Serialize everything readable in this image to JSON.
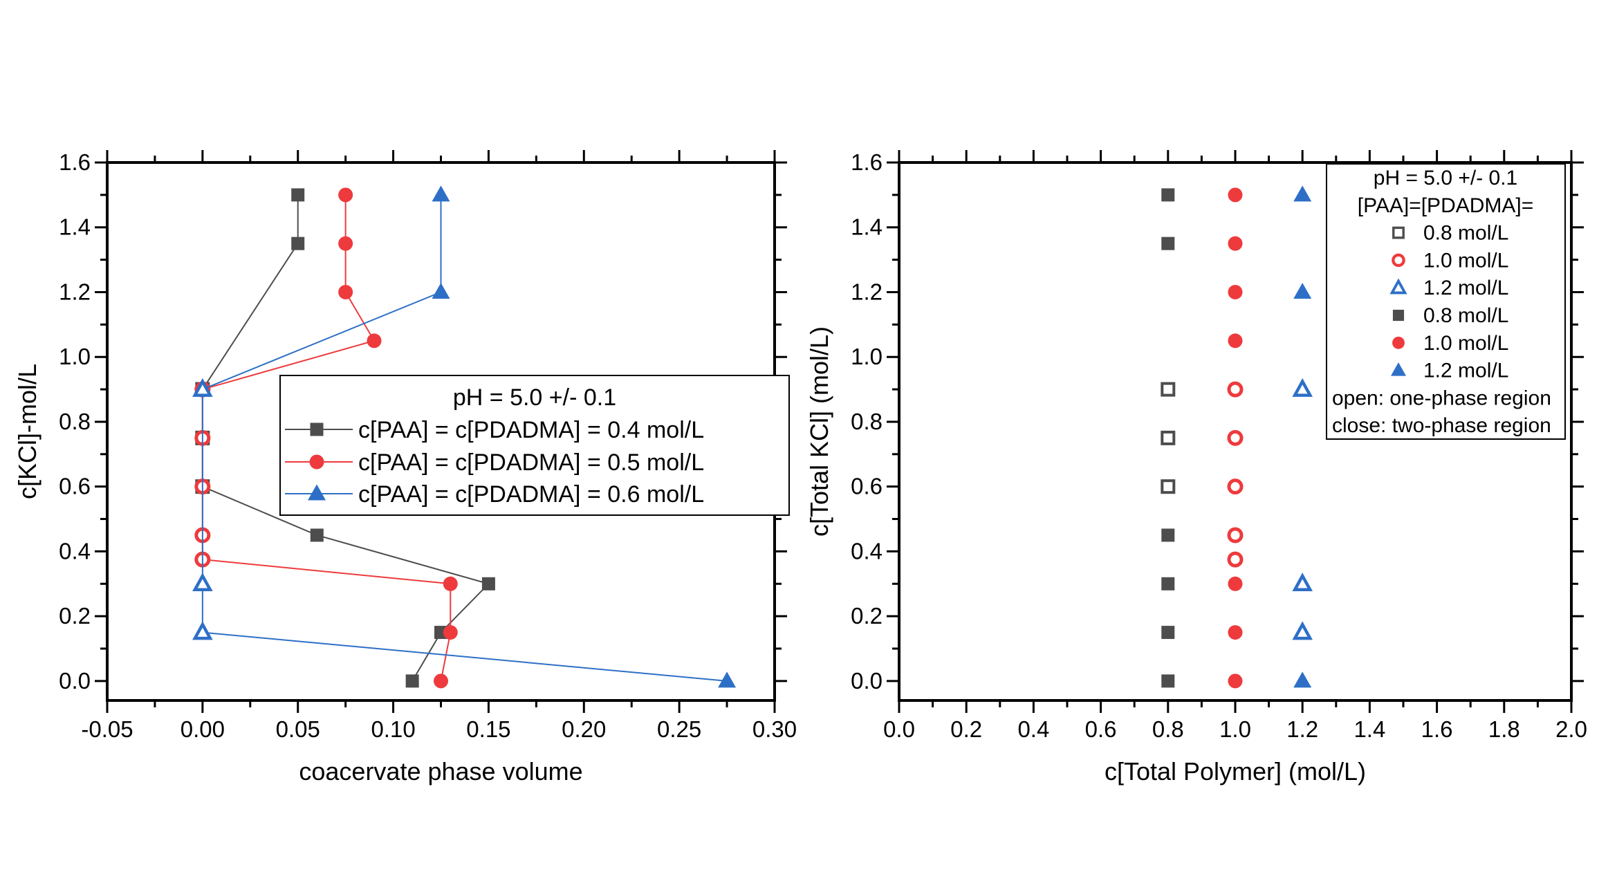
{
  "figure": {
    "background": "#ffffff",
    "colors": {
      "gray": "#4d4d4d",
      "red": "#ee3a3c",
      "blue": "#2d6fc7",
      "axis": "#000000",
      "open_fill": "#ffffff"
    }
  },
  "chart_data": [
    {
      "type": "line-scatter",
      "panel": "left",
      "xlabel": "coacervate phase volume",
      "ylabel": "c[KCl]-mol/L",
      "xlim": [
        -0.05,
        0.3
      ],
      "ylim": [
        -0.06,
        1.6
      ],
      "grid": false,
      "xticks": [
        -0.05,
        0.0,
        0.05,
        0.1,
        0.15,
        0.2,
        0.25,
        0.3
      ],
      "xtick_labels": [
        "-0.05",
        "0.00",
        "0.05",
        "0.10",
        "0.15",
        "0.20",
        "0.25",
        "0.30"
      ],
      "yticks": [
        0.0,
        0.2,
        0.4,
        0.6,
        0.8,
        1.0,
        1.2,
        1.4,
        1.6
      ],
      "ytick_labels": [
        "0.0",
        "0.2",
        "0.4",
        "0.6",
        "0.8",
        "1.0",
        "1.2",
        "1.4",
        "1.6"
      ],
      "legend": {
        "position": "inside-right",
        "title": "pH = 5.0 +/- 0.1",
        "entries": [
          {
            "marker": "square",
            "color_key": "gray",
            "open": false,
            "with_line": true,
            "label": "c[PAA] = c[PDADMA] = 0.4 mol/L"
          },
          {
            "marker": "circle",
            "color_key": "red",
            "open": false,
            "with_line": true,
            "label": "c[PAA] = c[PDADMA] = 0.5 mol/L"
          },
          {
            "marker": "triangle",
            "color_key": "blue",
            "open": false,
            "with_line": true,
            "label": "c[PAA] = c[PDADMA] = 0.6 mol/L"
          }
        ]
      },
      "series": [
        {
          "id": "paa-pdadma-0.4",
          "name": "c[PAA] = c[PDADMA] = 0.4 mol/L",
          "marker": "square",
          "color_key": "gray",
          "line": true,
          "points": [
            [
              0.05,
              1.5,
              1
            ],
            [
              0.05,
              1.35,
              1
            ],
            [
              0.0,
              0.9,
              0
            ],
            [
              0.0,
              0.75,
              0
            ],
            [
              0.0,
              0.6,
              0
            ],
            [
              0.06,
              0.45,
              1
            ],
            [
              0.15,
              0.3,
              1
            ],
            [
              0.125,
              0.15,
              1
            ],
            [
              0.11,
              0.0,
              1
            ]
          ]
        },
        {
          "id": "paa-pdadma-0.5",
          "name": "c[PAA] = c[PDADMA] = 0.5 mol/L",
          "marker": "circle",
          "color_key": "red",
          "line": true,
          "points": [
            [
              0.075,
              1.5,
              1
            ],
            [
              0.075,
              1.35,
              1
            ],
            [
              0.075,
              1.2,
              1
            ],
            [
              0.09,
              1.05,
              1
            ],
            [
              0.0,
              0.9,
              0
            ],
            [
              0.0,
              0.75,
              0
            ],
            [
              0.0,
              0.6,
              0
            ],
            [
              0.0,
              0.45,
              0
            ],
            [
              0.0,
              0.375,
              0
            ],
            [
              0.13,
              0.3,
              1
            ],
            [
              0.13,
              0.15,
              1
            ],
            [
              0.125,
              0.0,
              1
            ]
          ]
        },
        {
          "id": "paa-pdadma-0.6",
          "name": "c[PAA] = c[PDADMA] = 0.6 mol/L",
          "marker": "triangle",
          "color_key": "blue",
          "line": true,
          "points": [
            [
              0.125,
              1.5,
              1
            ],
            [
              0.125,
              1.2,
              1
            ],
            [
              0.0,
              0.9,
              0
            ],
            [
              0.0,
              0.3,
              0
            ],
            [
              0.0,
              0.15,
              0
            ],
            [
              0.275,
              0.0,
              1
            ]
          ]
        }
      ]
    },
    {
      "type": "scatter",
      "panel": "right",
      "xlabel": "c[Total Polymer] (mol/L)",
      "ylabel": "c[Total KCl] (mol/L)",
      "xlim": [
        0.0,
        2.0
      ],
      "ylim": [
        -0.06,
        1.6
      ],
      "grid": false,
      "xticks": [
        0.0,
        0.2,
        0.4,
        0.6,
        0.8,
        1.0,
        1.2,
        1.4,
        1.6,
        1.8,
        2.0
      ],
      "xtick_labels": [
        "0.0",
        "0.2",
        "0.4",
        "0.6",
        "0.8",
        "1.0",
        "1.2",
        "1.4",
        "1.6",
        "1.8",
        "2.0"
      ],
      "yticks": [
        0.0,
        0.2,
        0.4,
        0.6,
        0.8,
        1.0,
        1.2,
        1.4,
        1.6
      ],
      "ytick_labels": [
        "0.0",
        "0.2",
        "0.4",
        "0.6",
        "0.8",
        "1.0",
        "1.2",
        "1.4",
        "1.6"
      ],
      "legend": {
        "position": "top-right",
        "header_lines": [
          "pH = 5.0 +/- 0.1",
          "[PAA]=[PDADMA]="
        ],
        "entries": [
          {
            "marker": "square",
            "color_key": "gray",
            "open": true,
            "label": "0.8 mol/L"
          },
          {
            "marker": "circle",
            "color_key": "red",
            "open": true,
            "label": "1.0 mol/L"
          },
          {
            "marker": "triangle",
            "color_key": "blue",
            "open": true,
            "label": "1.2 mol/L"
          },
          {
            "marker": "square",
            "color_key": "gray",
            "open": false,
            "label": "0.8 mol/L"
          },
          {
            "marker": "circle",
            "color_key": "red",
            "open": false,
            "label": "1.0 mol/L"
          },
          {
            "marker": "triangle",
            "color_key": "blue",
            "open": false,
            "label": "1.2 mol/L"
          }
        ],
        "footer_lines": [
          "open: one-phase region",
          "close: two-phase region"
        ]
      },
      "series": [
        {
          "id": "total-polymer-0.8",
          "name": "0.8 mol/L",
          "marker": "square",
          "color_key": "gray",
          "line": false,
          "points": [
            [
              0.8,
              1.5,
              1
            ],
            [
              0.8,
              1.35,
              1
            ],
            [
              0.8,
              0.9,
              0
            ],
            [
              0.8,
              0.75,
              0
            ],
            [
              0.8,
              0.6,
              0
            ],
            [
              0.8,
              0.45,
              1
            ],
            [
              0.8,
              0.3,
              1
            ],
            [
              0.8,
              0.15,
              1
            ],
            [
              0.8,
              0.0,
              1
            ]
          ]
        },
        {
          "id": "total-polymer-1.0",
          "name": "1.0 mol/L",
          "marker": "circle",
          "color_key": "red",
          "line": false,
          "points": [
            [
              1.0,
              1.5,
              1
            ],
            [
              1.0,
              1.35,
              1
            ],
            [
              1.0,
              1.2,
              1
            ],
            [
              1.0,
              1.05,
              1
            ],
            [
              1.0,
              0.9,
              0
            ],
            [
              1.0,
              0.75,
              0
            ],
            [
              1.0,
              0.6,
              0
            ],
            [
              1.0,
              0.45,
              0
            ],
            [
              1.0,
              0.375,
              0
            ],
            [
              1.0,
              0.3,
              1
            ],
            [
              1.0,
              0.15,
              1
            ],
            [
              1.0,
              0.0,
              1
            ]
          ]
        },
        {
          "id": "total-polymer-1.2",
          "name": "1.2 mol/L",
          "marker": "triangle",
          "color_key": "blue",
          "line": false,
          "points": [
            [
              1.2,
              1.5,
              1
            ],
            [
              1.2,
              1.2,
              1
            ],
            [
              1.2,
              0.9,
              0
            ],
            [
              1.2,
              0.3,
              0
            ],
            [
              1.2,
              0.15,
              0
            ],
            [
              1.2,
              0.0,
              1
            ]
          ]
        }
      ]
    }
  ]
}
